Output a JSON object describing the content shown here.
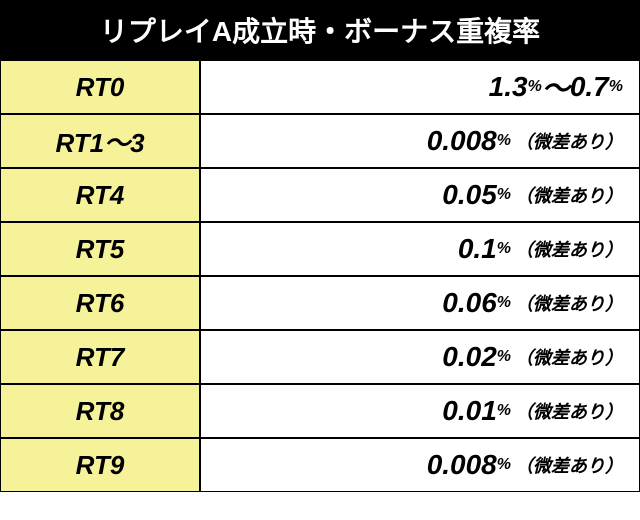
{
  "title": "リプレイA成立時・ボーナス重複率",
  "rows": [
    {
      "label": "RT0",
      "v1": "1.3",
      "sep": "〜",
      "v2": "0.7",
      "note": ""
    },
    {
      "label": "RT1〜3",
      "v1": "0.008",
      "sep": "",
      "v2": "",
      "note": "（微差あり）"
    },
    {
      "label": "RT4",
      "v1": "0.05",
      "sep": "",
      "v2": "",
      "note": "（微差あり）"
    },
    {
      "label": "RT5",
      "v1": "0.1",
      "sep": "",
      "v2": "",
      "note": "（微差あり）"
    },
    {
      "label": "RT6",
      "v1": "0.06",
      "sep": "",
      "v2": "",
      "note": "（微差あり）"
    },
    {
      "label": "RT7",
      "v1": "0.02",
      "sep": "",
      "v2": "",
      "note": "（微差あり）"
    },
    {
      "label": "RT8",
      "v1": "0.01",
      "sep": "",
      "v2": "",
      "note": "（微差あり）"
    },
    {
      "label": "RT9",
      "v1": "0.008",
      "sep": "",
      "v2": "",
      "note": "（微差あり）"
    }
  ],
  "pct": "%",
  "colors": {
    "header_bg": "#000000",
    "header_fg": "#ffffff",
    "label_bg": "#f6f29a",
    "value_bg": "#ffffff",
    "border": "#000000"
  }
}
